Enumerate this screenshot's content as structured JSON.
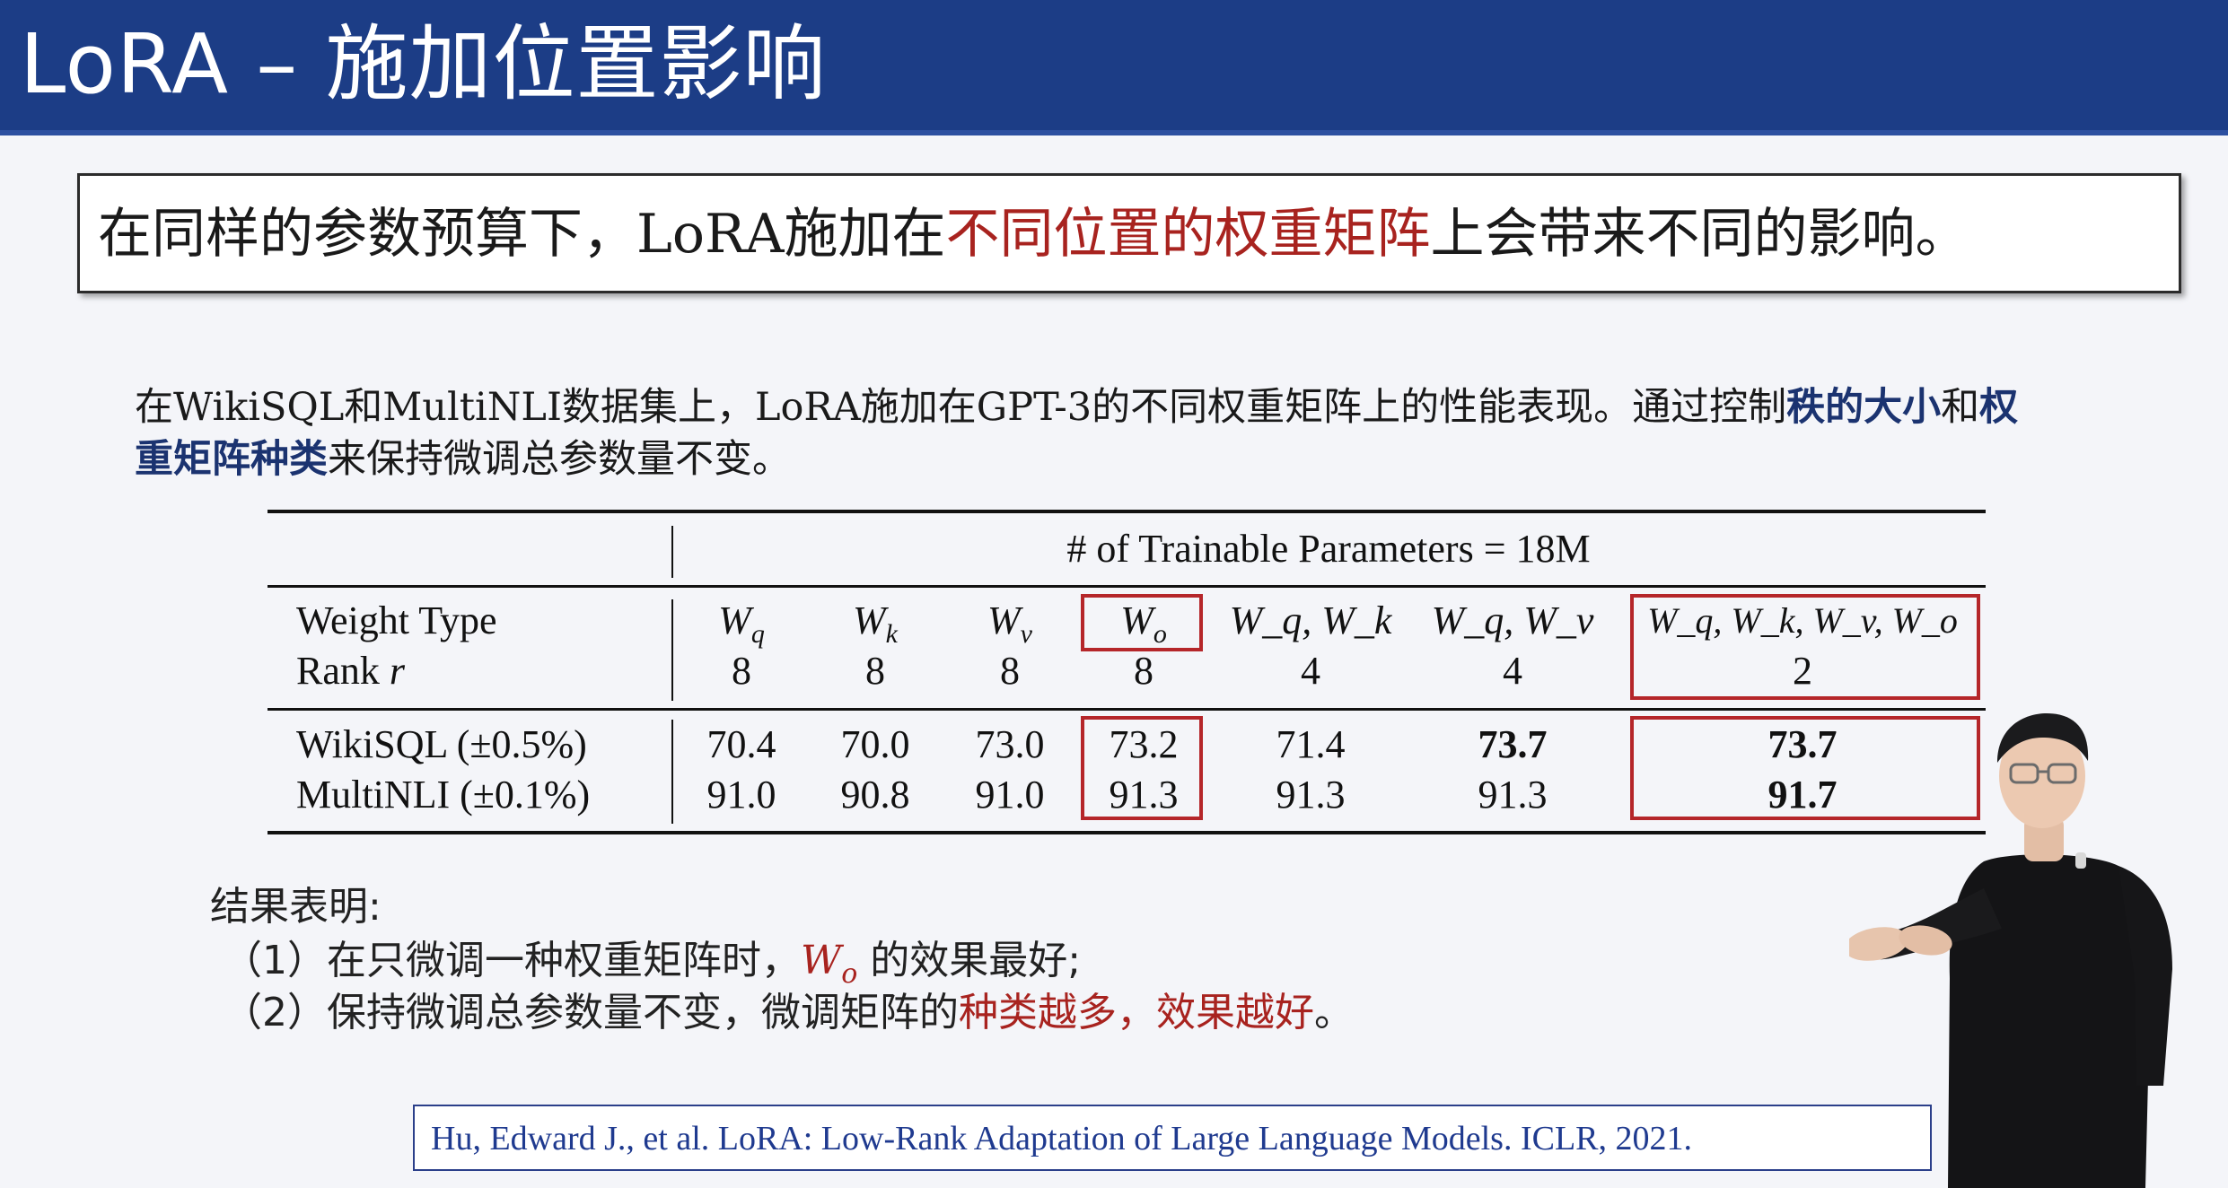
{
  "slide": {
    "title": "LoRA – 施加位置影响",
    "statement": {
      "before": "在同样的参数预算下，LoRA施加在",
      "highlight": "不同位置的权重矩阵",
      "after": "上会带来不同的影响。"
    },
    "description": {
      "part1": "在WikiSQL和MultiNLI数据集上，LoRA施加在GPT-3的不同权重矩阵上的性能表现。通过控制",
      "bold1": "秩的大小",
      "part2": "和",
      "bold2": "权重矩阵种类",
      "part3": "来保持微调总参数量不变。"
    }
  },
  "table": {
    "group_header": "# of Trainable Parameters = 18M",
    "row_labels": {
      "weight_type": "Weight Type",
      "rank": "Rank",
      "rank_symbol": "r",
      "wikisql": "WikiSQL (±0.5%)",
      "multinli": "MultiNLI (±0.1%)"
    },
    "columns": [
      {
        "weight": "W",
        "sub": "q",
        "rank": "8",
        "wikisql": "70.4",
        "multinli": "91.0"
      },
      {
        "weight": "W",
        "sub": "k",
        "rank": "8",
        "wikisql": "70.0",
        "multinli": "90.8"
      },
      {
        "weight": "W",
        "sub": "v",
        "rank": "8",
        "wikisql": "73.0",
        "multinli": "91.0"
      },
      {
        "weight": "W",
        "sub": "o",
        "rank": "8",
        "wikisql": "73.2",
        "multinli": "91.3"
      },
      {
        "weight": "W_q, W_k",
        "rank": "4",
        "wikisql": "71.4",
        "multinli": "91.3"
      },
      {
        "weight": "W_q, W_v",
        "rank": "4",
        "wikisql": "73.7",
        "multinli": "91.3"
      },
      {
        "weight": "W_q, W_k, W_v, W_o",
        "rank": "2",
        "wikisql": "73.7",
        "multinli": "91.7"
      }
    ]
  },
  "conclusions": {
    "heading": "结果表明:",
    "item1": {
      "prefix": "（1）在只微调一种权重矩阵时，",
      "highlight_w": "W",
      "highlight_sub": "o",
      "suffix": " 的效果最好;"
    },
    "item2": {
      "prefix": "（2）保持微调总参数量不变，微调矩阵的",
      "highlight": "种类越多，效果越好",
      "suffix": "。"
    }
  },
  "citation": "Hu, Edward J., et al. LoRA: Low-Rank Adaptation of Large Language Models. ICLR, 2021.",
  "colors": {
    "title_bar": "#1c3d86",
    "highlight_red": "#a8231f",
    "box_red": "#b5262a",
    "navy_bold": "#1b3370",
    "citation_blue": "#1f3a8f"
  },
  "presenter": {
    "icon": "presenter-figure"
  }
}
